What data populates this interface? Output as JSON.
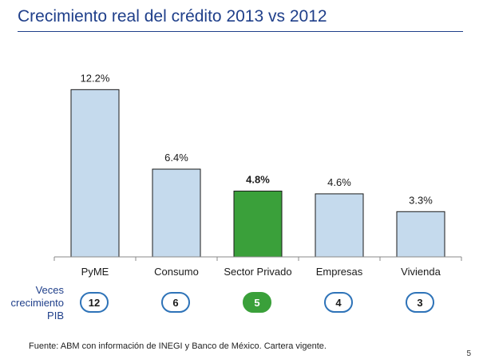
{
  "header": {
    "title": "Crecimiento real del crédito 2013 vs 2012"
  },
  "chart_data": {
    "type": "bar",
    "title": "Crecimiento real del crédito 2013 vs 2012",
    "categories": [
      "PyME",
      "Consumo",
      "Sector Privado",
      "Empresas",
      "Vivienda"
    ],
    "values": [
      12.2,
      6.4,
      4.8,
      4.6,
      3.3
    ],
    "value_labels": [
      "12.2%",
      "6.4%",
      "4.8%",
      "4.6%",
      "3.3%"
    ],
    "highlight_index": 2,
    "colors": {
      "bar": "#c5daed",
      "bar_border": "#1a1a1a",
      "highlight": "#3aa03a"
    },
    "ylim": [
      0,
      13.5
    ],
    "grid": false,
    "legend": "none"
  },
  "pib_row": {
    "label_lines": [
      "Veces",
      "crecimiento",
      "PIB"
    ],
    "values": [
      "12",
      "6",
      "5",
      "4",
      "3"
    ]
  },
  "footer": {
    "source": "Fuente: ABM con información de  INEGI y Banco de México. Cartera vigente.",
    "page_number": "5"
  }
}
